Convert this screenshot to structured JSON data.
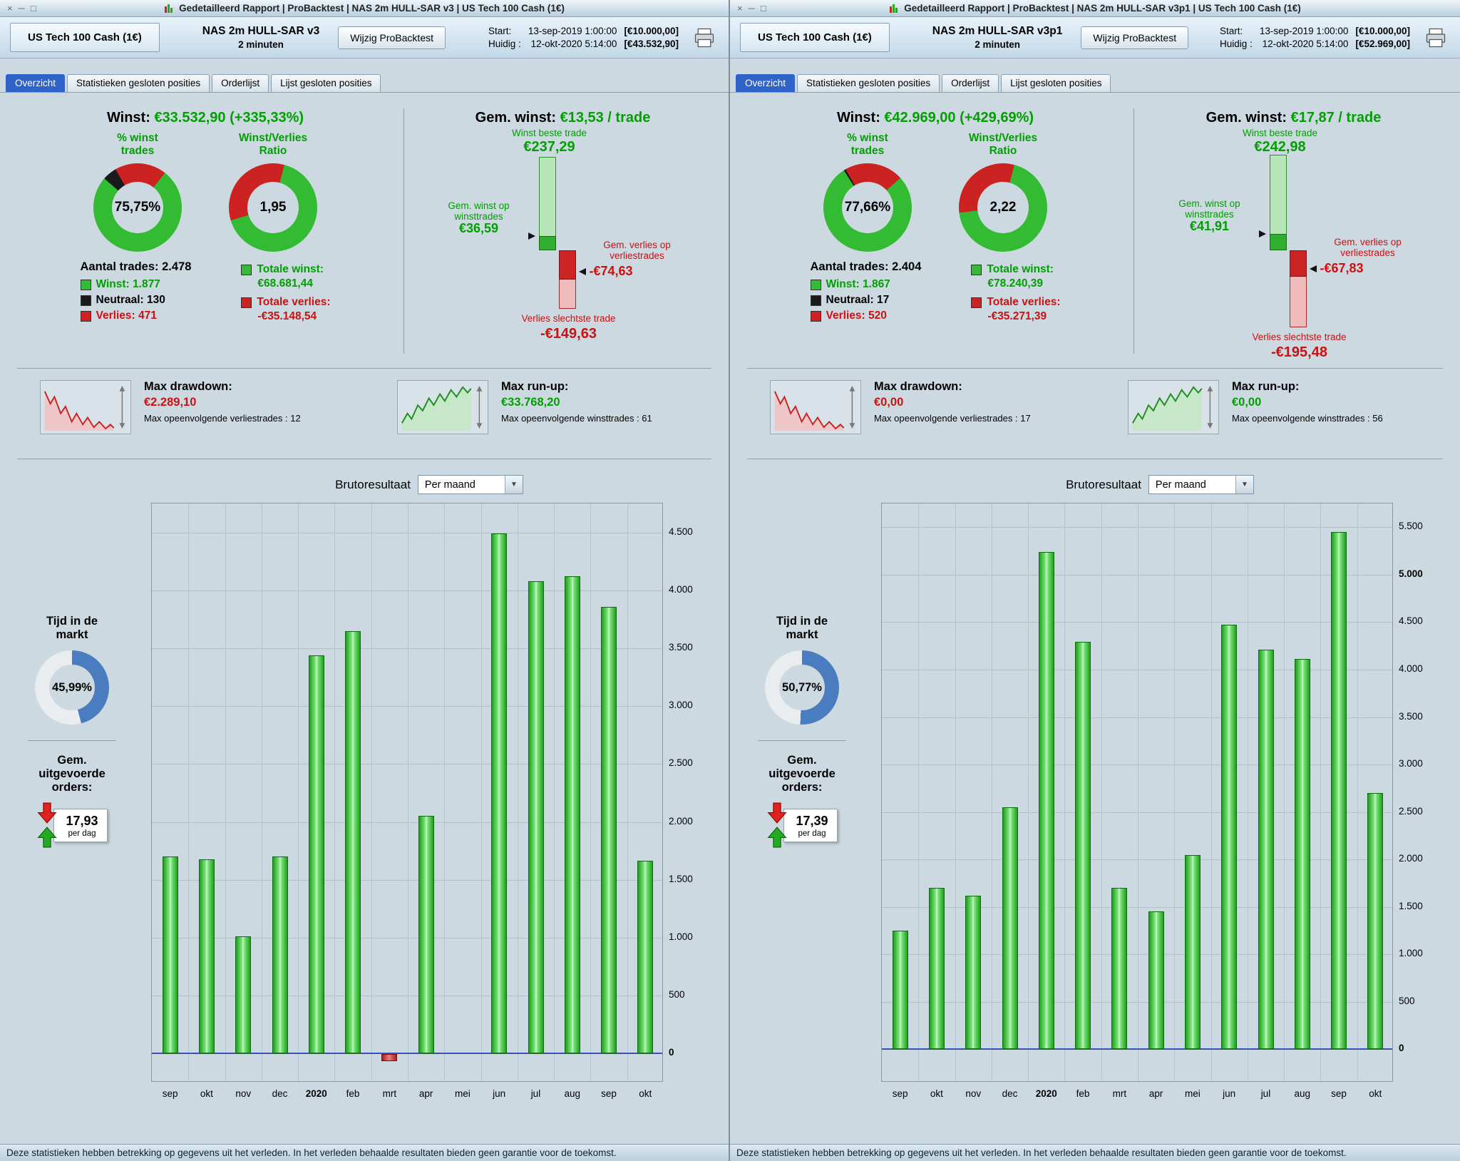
{
  "theme": {
    "accent_tab": "#2e64c8",
    "green": "#00a000",
    "red": "#cc1111",
    "panel_bg": "#ccd9e1",
    "zero_line": "#3950b8"
  },
  "chart_data": [
    {
      "type": "bar",
      "title": "Brutoresultaat",
      "period": "Per maand",
      "categories": [
        "sep",
        "okt",
        "nov",
        "dec",
        "2020",
        "feb",
        "mrt",
        "apr",
        "mei",
        "jun",
        "jul",
        "aug",
        "sep",
        "okt"
      ],
      "values": [
        1700,
        1680,
        1010,
        1700,
        3440,
        3650,
        -60,
        2050,
        0,
        4490,
        4080,
        4120,
        3860,
        1665
      ],
      "ylim": [
        -250,
        4750
      ],
      "yticks": [
        0,
        500,
        1000,
        1500,
        2000,
        2500,
        3000,
        3500,
        4000,
        4500
      ],
      "ytick_labels": [
        "0",
        "500",
        "1.000",
        "1.500",
        "2.000",
        "2.500",
        "3.000",
        "3.500",
        "4.000",
        "4.500"
      ],
      "bold_tick_labels": [
        "0"
      ],
      "bold_categories": [
        "2020"
      ],
      "positive_color": "#2db32d",
      "negative_color": "#cc3333"
    },
    {
      "type": "bar",
      "title": "Brutoresultaat",
      "period": "Per maand",
      "categories": [
        "sep",
        "okt",
        "nov",
        "dec",
        "2020",
        "feb",
        "mrt",
        "apr",
        "mei",
        "jun",
        "jul",
        "aug",
        "sep",
        "okt"
      ],
      "values": [
        1250,
        1700,
        1620,
        2550,
        5240,
        4290,
        1700,
        1450,
        2050,
        4470,
        4210,
        4110,
        5450,
        2700
      ],
      "ylim": [
        -350,
        5750
      ],
      "yticks": [
        0,
        500,
        1000,
        1500,
        2000,
        2500,
        3000,
        3500,
        4000,
        4500,
        5000,
        5500
      ],
      "ytick_labels": [
        "0",
        "500",
        "1.000",
        "1.500",
        "2.000",
        "2.500",
        "3.000",
        "3.500",
        "4.000",
        "4.500",
        "5.000",
        "5.500"
      ],
      "bold_tick_labels": [
        "0",
        "5.000"
      ],
      "bold_categories": [
        "2020"
      ],
      "positive_color": "#2db32d",
      "negative_color": "#cc3333"
    }
  ],
  "panels": [
    {
      "title": "Gedetailleerd Rapport | ProBacktest | NAS 2m HULL-SAR v3 | US Tech 100 Cash (1€)",
      "header": {
        "instrument": "US Tech 100 Cash (1€)",
        "strategy_name": "NAS 2m HULL-SAR v3",
        "strategy_timeframe": "2 minuten",
        "edit_button": "Wijzig ProBacktest",
        "start_label": "Start:",
        "start_datetime": "13-sep-2019 1:00:00",
        "start_amount": "[€10.000,00]",
        "current_label": "Huidig :",
        "current_datetime": "12-okt-2020 5:14:00",
        "current_amount": "[€43.532,90]"
      },
      "tabs": {
        "overzicht": "Overzicht",
        "statistieken": "Statistieken gesloten posities",
        "orderlijst": "Orderlijst",
        "lijst": "Lijst gesloten posities"
      },
      "stats": {
        "winst_label": "Winst:",
        "winst_value": "€33.532,90 (+335,33%)",
        "pct_title": "% winst\ntrades",
        "pct_value": "75,75%",
        "ratio_title": "Winst/Verlies\nRatio",
        "ratio_value": "1,95",
        "aantal_trades": "Aantal trades: 2.478",
        "legend_win": "Winst: 1.877",
        "legend_neutral": "Neutraal: 130",
        "legend_loss": "Verlies: 471",
        "totale_winst_label": "Totale winst:",
        "totale_winst_value": "€68.681,44",
        "totale_verlies_label": "Totale verlies:",
        "totale_verlies_value": "-€35.148,54"
      },
      "gem": {
        "label": "Gem. winst:",
        "value": "€13,53 / trade",
        "best_label": "Winst beste trade",
        "best_value": "€237,29",
        "avgwin_label": "Gem. winst op\nwinsttrades",
        "avgwin_value": "€36,59",
        "avgloss_label": "Gem. verlies op\nverliestrades",
        "avgloss_value": "-€74,63",
        "worst_label": "Verlies slechtste trade",
        "worst_value": "-€149,63"
      },
      "diagram": {
        "best": 237.29,
        "avg_win": 36.59,
        "avg_loss": 74.63,
        "worst": 149.63
      },
      "drawdown": {
        "dd_label": "Max drawdown:",
        "dd_value": "€2.289,10",
        "dd_sub": "Max opeenvolgende verliestrades : 12",
        "ru_label": "Max run-up:",
        "ru_value": "€33.768,20",
        "ru_sub": "Max opeenvolgende winsttrades : 61"
      },
      "market": {
        "tijd_title": "Tijd in de\nmarkt",
        "tijd_value": "45,99%",
        "orders_title": "Gem.\nuitgevoerde\norders:",
        "orders_value": "17,93",
        "orders_unit": "per dag"
      },
      "chart_header": {
        "title": "Brutoresultaat",
        "period": "Per maand"
      },
      "donuts": {
        "pct": {
          "from": -30,
          "segments": [
            {
              "color": "#cc2222",
              "pct": 19.0
            },
            {
              "color": "#33bb33",
              "pct": 75.75
            },
            {
              "color": "#1a1a1a",
              "pct": 5.25
            }
          ]
        },
        "ratio": {
          "from": 15,
          "segments": [
            {
              "color": "#33bb33",
              "pct": 66.1
            },
            {
              "color": "#cc2222",
              "pct": 33.9
            }
          ]
        },
        "tijd": {
          "from": 0,
          "segments": [
            {
              "color": "#4a7cc0",
              "pct": 45.99
            },
            {
              "color": "#e9edf0",
              "pct": 54.01
            }
          ]
        }
      },
      "status": "Deze statistieken hebben betrekking op gegevens uit het verleden. In het verleden behaalde resultaten bieden geen garantie voor de toekomst."
    },
    {
      "title": "Gedetailleerd Rapport | ProBacktest | NAS 2m HULL-SAR v3p1 | US Tech 100 Cash (1€)",
      "header": {
        "instrument": "US Tech 100 Cash (1€)",
        "strategy_name": "NAS 2m HULL-SAR v3p1",
        "strategy_timeframe": "2 minuten",
        "edit_button": "Wijzig ProBacktest",
        "start_label": "Start:",
        "start_datetime": "13-sep-2019 1:00:00",
        "start_amount": "[€10.000,00]",
        "current_label": "Huidig :",
        "current_datetime": "12-okt-2020 5:14:00",
        "current_amount": "[€52.969,00]"
      },
      "tabs": {
        "overzicht": "Overzicht",
        "statistieken": "Statistieken gesloten posities",
        "orderlijst": "Orderlijst",
        "lijst": "Lijst gesloten posities"
      },
      "stats": {
        "winst_label": "Winst:",
        "winst_value": "€42.969,00 (+429,69%)",
        "pct_title": "% winst\ntrades",
        "pct_value": "77,66%",
        "ratio_title": "Winst/Verlies\nRatio",
        "ratio_value": "2,22",
        "aantal_trades": "Aantal trades: 2.404",
        "legend_win": "Winst: 1.867",
        "legend_neutral": "Neutraal: 17",
        "legend_loss": "Verlies: 520",
        "totale_winst_label": "Totale winst:",
        "totale_winst_value": "€78.240,39",
        "totale_verlies_label": "Totale verlies:",
        "totale_verlies_value": "-€35.271,39"
      },
      "gem": {
        "label": "Gem. winst:",
        "value": "€17,87 / trade",
        "best_label": "Winst beste trade",
        "best_value": "€242,98",
        "avgwin_label": "Gem. winst op\nwinsttrades",
        "avgwin_value": "€41,91",
        "avgloss_label": "Gem. verlies op\nverliestrades",
        "avgloss_value": "-€67,83",
        "worst_label": "Verlies slechtste trade",
        "worst_value": "-€195,48"
      },
      "diagram": {
        "best": 242.98,
        "avg_win": 41.91,
        "avg_loss": 67.83,
        "worst": 195.48
      },
      "drawdown": {
        "dd_label": "Max drawdown:",
        "dd_value": "€0,00",
        "dd_sub": "Max opeenvolgende verliestrades : 17",
        "ru_label": "Max run-up:",
        "ru_value": "€0,00",
        "ru_sub": "Max opeenvolgende winsttrades : 56"
      },
      "market": {
        "tijd_title": "Tijd in de\nmarkt",
        "tijd_value": "50,77%",
        "orders_title": "Gem.\nuitgevoerde\norders:",
        "orders_value": "17,39",
        "orders_unit": "per dag"
      },
      "chart_header": {
        "title": "Brutoresultaat",
        "period": "Per maand"
      },
      "donuts": {
        "pct": {
          "from": -30,
          "segments": [
            {
              "color": "#cc2222",
              "pct": 21.63
            },
            {
              "color": "#33bb33",
              "pct": 77.66
            },
            {
              "color": "#1a1a1a",
              "pct": 0.71
            }
          ]
        },
        "ratio": {
          "from": 15,
          "segments": [
            {
              "color": "#33bb33",
              "pct": 68.94
            },
            {
              "color": "#cc2222",
              "pct": 31.06
            }
          ]
        },
        "tijd": {
          "from": 0,
          "segments": [
            {
              "color": "#4a7cc0",
              "pct": 50.77
            },
            {
              "color": "#e9edf0",
              "pct": 49.23
            }
          ]
        }
      },
      "status": "Deze statistieken hebben betrekking op gegevens uit het verleden. In het verleden behaalde resultaten bieden geen garantie voor de toekomst."
    }
  ]
}
